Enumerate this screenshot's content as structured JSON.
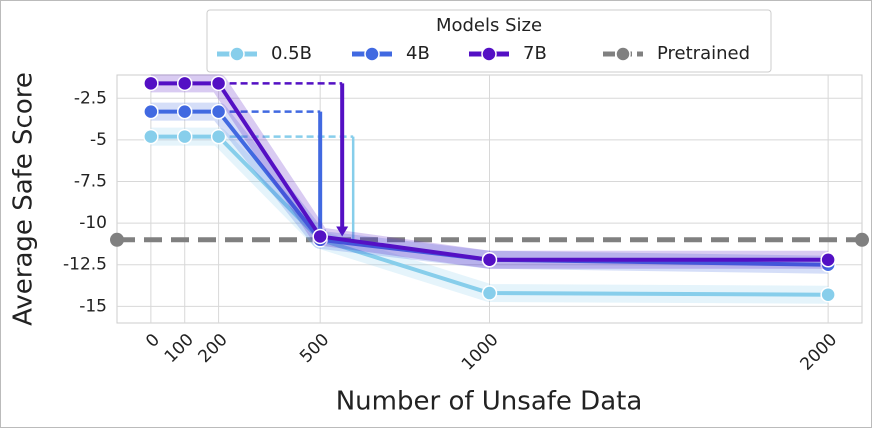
{
  "chart_data": {
    "type": "line",
    "xlabel": "Number of Unsafe Data",
    "ylabel": "Average Safe Score",
    "legend_title": "Models Size",
    "legend": "top",
    "x": [
      0,
      100,
      200,
      500,
      1000,
      2000
    ],
    "xticks": [
      0,
      100,
      200,
      500,
      1000,
      2000
    ],
    "xlim": [
      -100,
      2100
    ],
    "ylim": [
      -16.0,
      -1.1
    ],
    "yticks": [
      -2.5,
      -5.0,
      -7.5,
      -10.0,
      -12.5,
      -15.0
    ],
    "grid": true,
    "series": [
      {
        "name": "0.5B",
        "color": "#87ceeb",
        "values": [
          -4.8,
          -4.8,
          -4.8,
          -11.0,
          -14.2,
          -14.3
        ]
      },
      {
        "name": "4B",
        "color": "#4169e1",
        "values": [
          -3.3,
          -3.3,
          -3.3,
          -11.0,
          -12.2,
          -12.5
        ]
      },
      {
        "name": "7B",
        "color": "#5410c4",
        "values": [
          -1.6,
          -1.6,
          -1.6,
          -10.8,
          -12.2,
          -12.2
        ]
      }
    ],
    "reference": {
      "name": "Pretrained",
      "color": "#808080",
      "value": -11.0
    }
  }
}
